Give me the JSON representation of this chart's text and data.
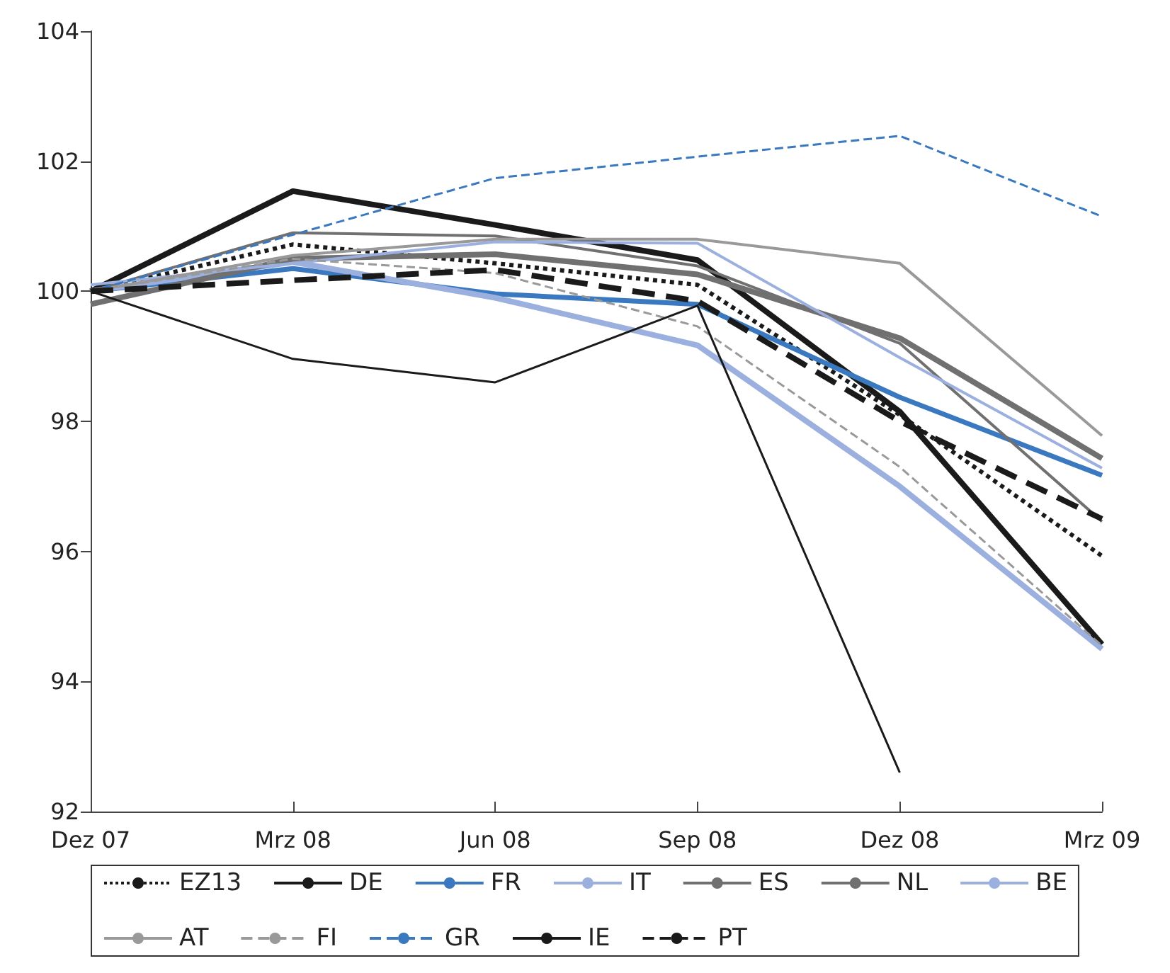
{
  "chart_data": {
    "type": "line",
    "categories": [
      "Dez 07",
      "Mrz 08",
      "Jun 08",
      "Sep 08",
      "Dez 08",
      "Mrz 09"
    ],
    "ylim": [
      92,
      104
    ],
    "yticks": [
      92,
      94,
      96,
      98,
      100,
      102,
      104
    ],
    "grid": false,
    "legend": "bottom",
    "marker": "none",
    "series": [
      {
        "name": "EZ13",
        "color": "#1a1a1a",
        "line_style": "dotted",
        "values": [
          100,
          100.72,
          100.43,
          100.1,
          98.1,
          95.93
        ]
      },
      {
        "name": "DE",
        "color": "#1a1a1a",
        "line_style": "solid",
        "values": [
          100,
          101.54,
          101.02,
          100.48,
          98.15,
          94.57
        ]
      },
      {
        "name": "FR",
        "color": "#3a78c0",
        "line_style": "solid",
        "values": [
          100,
          100.35,
          99.96,
          99.8,
          98.37,
          97.17
        ]
      },
      {
        "name": "IT",
        "color": "#9bb0de",
        "line_style": "solid",
        "values": [
          100,
          100.45,
          99.9,
          99.17,
          97.0,
          94.5
        ]
      },
      {
        "name": "ES",
        "color": "#707070",
        "line_style": "solid",
        "values": [
          99.8,
          100.5,
          100.57,
          100.26,
          99.28,
          97.43
        ]
      },
      {
        "name": "NL",
        "color": "#707070",
        "line_style": "solid",
        "values": [
          100,
          100.9,
          100.85,
          100.39,
          99.2,
          96.46
        ]
      },
      {
        "name": "BE",
        "color": "#9bb0de",
        "line_style": "solid",
        "values": [
          100.1,
          100.43,
          100.76,
          100.74,
          98.98,
          97.28
        ]
      },
      {
        "name": "AT",
        "color": "#999999",
        "line_style": "solid",
        "values": [
          100,
          100.55,
          100.8,
          100.8,
          100.43,
          97.78
        ]
      },
      {
        "name": "FI",
        "color": "#999999",
        "line_style": "dashed",
        "values": [
          100,
          100.5,
          100.28,
          99.46,
          97.3,
          94.55
        ]
      },
      {
        "name": "GR",
        "color": "#3a78c0",
        "line_style": "dashed",
        "values": [
          100,
          100.87,
          101.74,
          102.07,
          102.39,
          101.15
        ]
      },
      {
        "name": "IE",
        "color": "#1a1a1a",
        "line_style": "solid",
        "values": [
          100,
          98.96,
          98.6,
          99.78,
          92.6,
          null
        ]
      },
      {
        "name": "PT",
        "color": "#1a1a1a",
        "line_style": "dashed",
        "values": [
          100,
          100.17,
          100.33,
          99.85,
          98.0,
          96.5
        ]
      }
    ]
  }
}
